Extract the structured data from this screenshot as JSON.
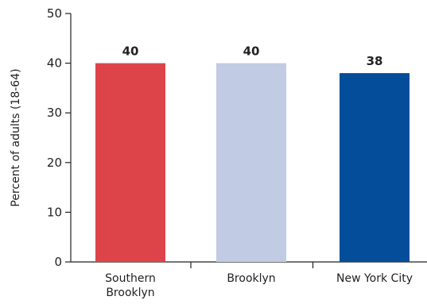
{
  "chart_data": {
    "type": "bar",
    "title": "",
    "xlabel": "",
    "ylabel": "Percent of adults (18-64)",
    "ylim": [
      0,
      50
    ],
    "yticks": [
      0,
      10,
      20,
      30,
      40,
      50
    ],
    "categories": [
      [
        "Southern",
        "Brooklyn"
      ],
      [
        "Brooklyn"
      ],
      [
        "New York City"
      ]
    ],
    "values": [
      40,
      40,
      38
    ],
    "value_labels": [
      "40",
      "40",
      "38"
    ],
    "colors": [
      "#dd4449",
      "#c2cbe4",
      "#034d9a"
    ],
    "grid": false,
    "legend": "none"
  }
}
